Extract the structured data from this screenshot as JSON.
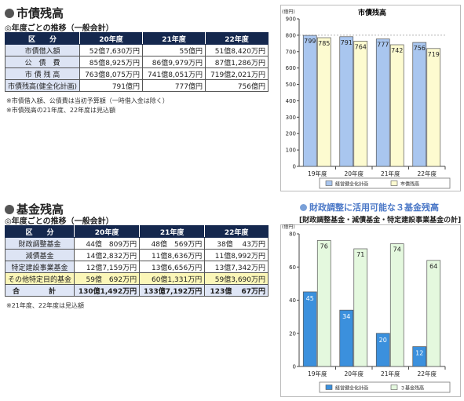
{
  "debt": {
    "title": "市債残高",
    "subtitle": "◎年度ごとの推移（一般会計）",
    "table": {
      "headers": [
        "区　　分",
        "20年度",
        "21年度",
        "22年度"
      ],
      "rows": [
        [
          "市債借入額",
          "52億7,630万円",
          "55億円",
          "51億8,420万円"
        ],
        [
          "公　債　費",
          "85億8,925万円",
          "86億9,979万円",
          "87億1,286万円"
        ],
        [
          "市 債 残 高",
          "763億8,075万円",
          "741億8,051万円",
          "719億2,021万円"
        ],
        [
          "市債残高(健全化計画)",
          "791億円",
          "777億円",
          "756億円"
        ]
      ]
    },
    "notes": [
      "※市債借入額、公債費は当初予算額（一時借入金は除く）",
      "※市債残高の21年度、22年度は見込額"
    ]
  },
  "fund": {
    "title": "基金残高",
    "subtitle": "◎年度ごとの推移（一般会計）",
    "table": {
      "headers": [
        "区　　分",
        "20年度",
        "21年度",
        "22年度"
      ],
      "rows": [
        [
          "財政調整基金",
          "44億　809万円",
          "48億　569万円",
          "38億　 43万円"
        ],
        [
          "減債基金",
          "14億2,832万円",
          "11億8,636万円",
          "11億8,992万円"
        ],
        [
          "特定建設事業基金",
          "12億7,159万円",
          "13億6,656万円",
          "13億7,342万円"
        ],
        [
          "その他特定目的基金",
          "59億　692万円",
          "60億1,331万円",
          "59億3,690万円"
        ],
        [
          "合　計",
          "130億1,492万円",
          "133億7,192万円",
          "123億　 67万円"
        ]
      ]
    },
    "notes": [
      "※21年度、22年度は見込額"
    ]
  },
  "fund_chart_heading": "財政調整に活用可能な３基金残高",
  "fund_chart_subheading": "[財政調整基金・減債基金・特定建設事業基金の計]",
  "chart_data": [
    {
      "type": "bar",
      "title": "市債残高",
      "ylabel": "(億円)",
      "categories": [
        "19年度",
        "20年度",
        "21年度",
        "22年度"
      ],
      "series": [
        {
          "name": "経営健全化計画",
          "values": [
            799,
            791,
            777,
            756
          ],
          "color": "#a9c6ef"
        },
        {
          "name": "市債残高",
          "values": [
            785,
            764,
            742,
            719
          ],
          "color": "#fdfbd0"
        }
      ],
      "ylim": [
        0,
        900
      ],
      "yticks": [
        0,
        100,
        200,
        300,
        400,
        500,
        600,
        700,
        800,
        900
      ],
      "grid": false,
      "legend": "bottom"
    },
    {
      "type": "bar",
      "title": "",
      "ylabel": "(億円)",
      "categories": [
        "19年度",
        "20年度",
        "21年度",
        "22年度"
      ],
      "series": [
        {
          "name": "経営健全化計画",
          "values": [
            45,
            34,
            20,
            12
          ],
          "color": "#3b90dd"
        },
        {
          "name": "３基金残高",
          "values": [
            76,
            71,
            74,
            64
          ],
          "color": "#e4f8de"
        }
      ],
      "ylim": [
        0,
        80
      ],
      "yticks": [
        0,
        20,
        40,
        60,
        80
      ],
      "grid": false,
      "legend": "bottom"
    }
  ]
}
